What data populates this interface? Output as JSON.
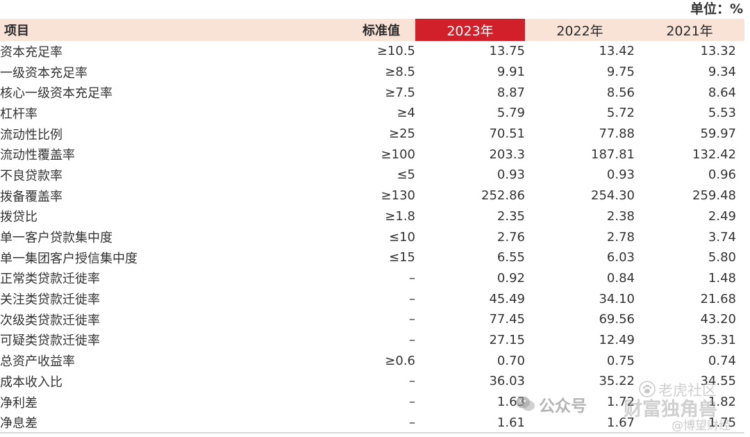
{
  "unit_label": "单位：%",
  "header": {
    "item": "项目",
    "standard": "标准值",
    "years": [
      "2023年",
      "2022年",
      "2021年"
    ],
    "highlight_color": "#d2202a"
  },
  "rows": [
    {
      "item": "资本充足率",
      "standard": "≥10.5",
      "values": [
        "13.75",
        "13.42",
        "13.32"
      ]
    },
    {
      "item": "一级资本充足率",
      "standard": "≥8.5",
      "values": [
        "9.91",
        "9.75",
        "9.34"
      ]
    },
    {
      "item": "核心一级资本充足率",
      "standard": "≥7.5",
      "values": [
        "8.87",
        "8.56",
        "8.64"
      ]
    },
    {
      "item": "杠杆率",
      "standard": "≥4",
      "values": [
        "5.79",
        "5.72",
        "5.53"
      ]
    },
    {
      "item": "流动性比例",
      "standard": "≥25",
      "values": [
        "70.51",
        "77.88",
        "59.97"
      ]
    },
    {
      "item": "流动性覆盖率",
      "standard": "≥100",
      "values": [
        "203.3",
        "187.81",
        "132.42"
      ]
    },
    {
      "item": "不良贷款率",
      "standard": "≤5",
      "values": [
        "0.93",
        "0.93",
        "0.96"
      ]
    },
    {
      "item": "拨备覆盖率",
      "standard": "≥130",
      "values": [
        "252.86",
        "254.30",
        "259.48"
      ]
    },
    {
      "item": "拨贷比",
      "standard": "≥1.8",
      "values": [
        "2.35",
        "2.38",
        "2.49"
      ]
    },
    {
      "item": "单一客户贷款集中度",
      "standard": "≤10",
      "values": [
        "2.76",
        "2.78",
        "3.74"
      ]
    },
    {
      "item": "单一集团客户授信集中度",
      "standard": "≤15",
      "values": [
        "6.55",
        "6.03",
        "5.80"
      ]
    },
    {
      "item": "正常类贷款迁徙率",
      "standard": "–",
      "values": [
        "0.92",
        "0.84",
        "1.48"
      ]
    },
    {
      "item": "关注类贷款迁徙率",
      "standard": "–",
      "values": [
        "45.49",
        "34.10",
        "21.68"
      ]
    },
    {
      "item": "次级类贷款迁徙率",
      "standard": "–",
      "values": [
        "77.45",
        "69.56",
        "43.20"
      ]
    },
    {
      "item": "可疑类贷款迁徙率",
      "standard": "–",
      "values": [
        "27.15",
        "12.49",
        "35.31"
      ]
    },
    {
      "item": "总资产收益率",
      "standard": "≥0.6",
      "values": [
        "0.70",
        "0.75",
        "0.74"
      ]
    },
    {
      "item": "成本收入比",
      "standard": "–",
      "values": [
        "36.03",
        "35.22",
        "34.55"
      ]
    },
    {
      "item": "净利差",
      "standard": "–",
      "values": [
        "1.63",
        "1.72",
        "1.82"
      ]
    },
    {
      "item": "净息差",
      "standard": "–",
      "values": [
        "1.61",
        "1.67",
        "1.75"
      ]
    }
  ],
  "watermarks": {
    "wechat": "公众号",
    "channel": "财富独角兽",
    "community": "老虎社区",
    "handle": "@博望财经",
    "icons": [
      "wechat-icon",
      "tiger-paw-icon"
    ]
  }
}
